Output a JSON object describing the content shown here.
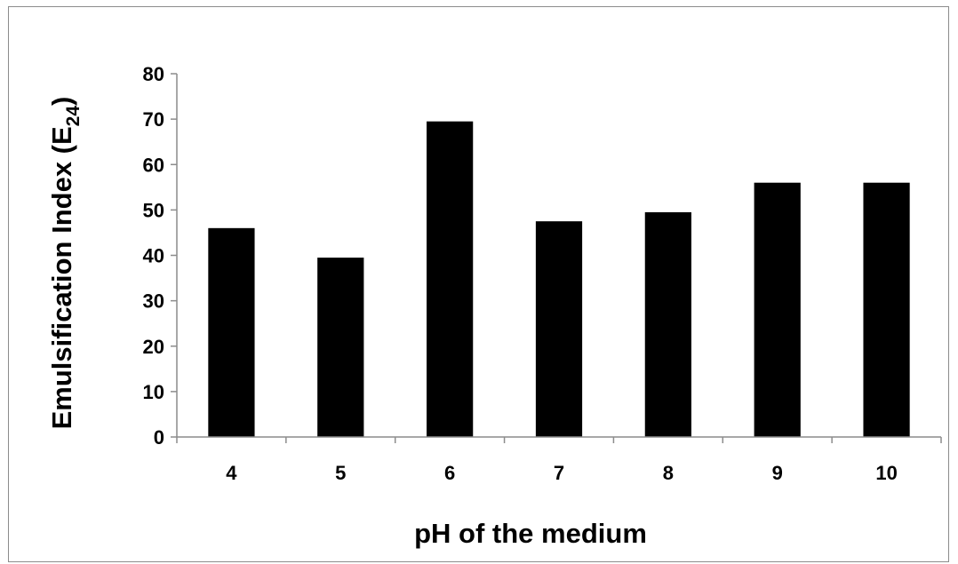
{
  "chart_data": {
    "type": "bar",
    "categories": [
      "4",
      "5",
      "6",
      "7",
      "8",
      "9",
      "10"
    ],
    "values": [
      46,
      39.5,
      69.5,
      47.5,
      49.5,
      56,
      56
    ],
    "title": "",
    "xlabel": "pH of the medium",
    "ylabel": {
      "main": "Emulsification Index (E",
      "subscript": "24",
      "close": ")"
    },
    "ylim": [
      0,
      80
    ],
    "yticks": [
      "0",
      "10",
      "20",
      "30",
      "40",
      "50",
      "60",
      "70",
      "80"
    ],
    "grid": false,
    "legend": "none",
    "bar_color": "#000000"
  }
}
